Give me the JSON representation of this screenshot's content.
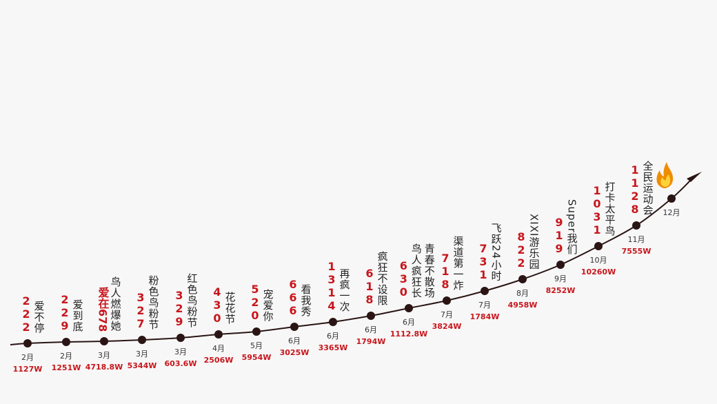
{
  "nodes": [
    {
      "month": "2月",
      "value": "1127W",
      "date": "222",
      "name": [
        "爱不停"
      ]
    },
    {
      "month": "2月",
      "value": "1251W",
      "date": "229",
      "name": [
        "爱到底"
      ]
    },
    {
      "month": "3月",
      "value": "4718.8W",
      "date": "爱在678",
      "name": [
        "鸟人燃爆她"
      ]
    },
    {
      "month": "3月",
      "value": "5344W",
      "date": "327",
      "name": [
        "粉色鸟粉节"
      ]
    },
    {
      "month": "3月",
      "value": "603.6W",
      "date": "329",
      "name": [
        "红色鸟粉节"
      ]
    },
    {
      "month": "4月",
      "value": "2506W",
      "date": "430",
      "name": [
        "花花节"
      ]
    },
    {
      "month": "5月",
      "value": "5954W",
      "date": "520",
      "name": [
        "宠爱你"
      ]
    },
    {
      "month": "6月",
      "value": "3025W",
      "date": "666",
      "name": [
        "看我秀"
      ]
    },
    {
      "month": "6月",
      "value": "3365W",
      "date": "1314",
      "name": [
        "再疯一次"
      ]
    },
    {
      "month": "6月",
      "value": "1794W",
      "date": "618",
      "name": [
        "疯狂不设限"
      ]
    },
    {
      "month": "6月",
      "value": "1112.8W",
      "date": "630",
      "name": [
        "鸟人疯狂长",
        "青春不散场"
      ]
    },
    {
      "month": "7月",
      "value": "3824W",
      "date": "718",
      "name": [
        "渠道第一炸"
      ]
    },
    {
      "month": "7月",
      "value": "1784W",
      "date": "731",
      "name": [
        "飞跃24小时"
      ]
    },
    {
      "month": "8月",
      "value": "4958W",
      "date": "822",
      "name": [
        "XIXI游乐园"
      ]
    },
    {
      "month": "9月",
      "value": "8252W",
      "date": "919",
      "name": [
        "Super我们"
      ]
    },
    {
      "month": "10月",
      "value": "10260W",
      "date": "1031",
      "name": [
        "打卡太平鸟"
      ]
    },
    {
      "month": "11月",
      "value": "7555W",
      "date": "1128",
      "name": [
        "全民运动会"
      ]
    },
    {
      "month": "12月"
    }
  ]
}
